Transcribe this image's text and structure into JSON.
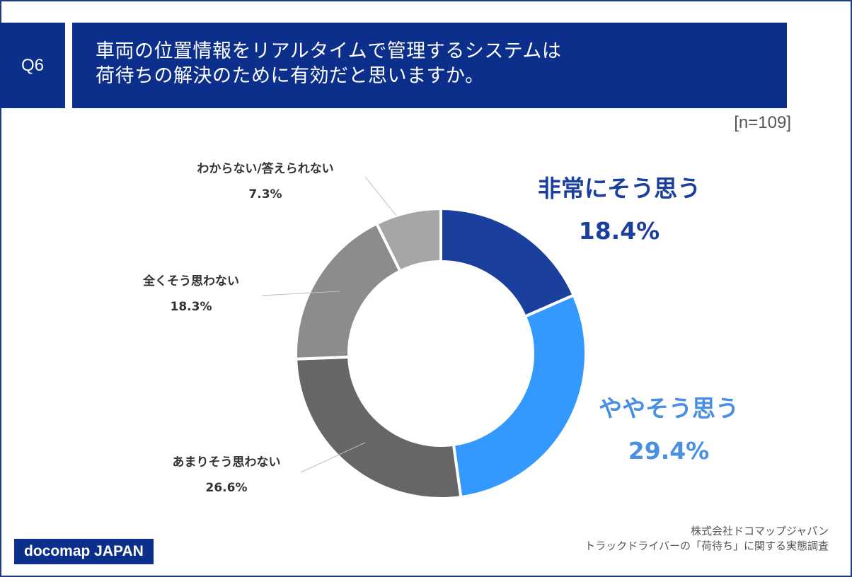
{
  "header": {
    "question_no": "Q6",
    "title_lines": [
      "車両の位置情報をリアルタイムで管理するシステムは",
      "荷待ちの解決のために有効だと思いますか。"
    ],
    "sample": "[n=109]"
  },
  "chart_data": {
    "type": "pie",
    "style": "donut",
    "categories": [
      "非常にそう思う",
      "ややそう思う",
      "あまりそう思わない",
      "全くそう思わない",
      "わからない/答えられない"
    ],
    "values": [
      18.4,
      29.4,
      26.6,
      18.3,
      7.3
    ],
    "value_labels": [
      "18.4%",
      "29.4%",
      "26.6%",
      "18.3%",
      "7.3%"
    ],
    "colors": [
      "#1a3f9c",
      "#3399ff",
      "#666666",
      "#8c8c8c",
      "#a6a6a6"
    ],
    "label_colors": [
      "#1a3f9c",
      "#4a90e2",
      "#333333",
      "#333333",
      "#333333"
    ]
  },
  "footer": {
    "source_lines": [
      "株式会社ドコマップジャパン",
      "トラックドライバーの「荷待ち」に関する実態調査"
    ],
    "logo": "docomap JAPAN"
  }
}
